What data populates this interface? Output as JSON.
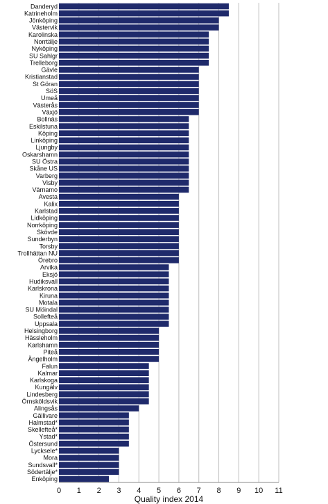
{
  "chart_data": {
    "type": "bar",
    "orientation": "horizontal",
    "xlabel": "Quality index 2014",
    "xlim": [
      0,
      11
    ],
    "xticks": [
      0,
      1,
      2,
      3,
      4,
      5,
      6,
      7,
      8,
      9,
      10,
      11
    ],
    "grid": true,
    "colors": {
      "bar": "#1f2a6b"
    },
    "categories": [
      "Danderyd",
      "Katrineholm",
      "Jönköping",
      "Västervik",
      "Karolinska",
      "Norrtälje",
      "Nyköping",
      "SU Sahlgr",
      "Trelleborg",
      "Gävle",
      "Kristianstad",
      "St Göran",
      "SöS",
      "Umeå",
      "Västerås",
      "Växjö",
      "Bollnäs",
      "Eskilstuna",
      "Köping",
      "Linköping",
      "Ljungby",
      "Oskarshamn",
      "SU Östra",
      "Skåne US",
      "Varberg",
      "Visby",
      "Värnamo",
      "Avesta",
      "Kalix",
      "Karlstad",
      "Lidköping",
      "Norrköping",
      "Skövde",
      "Sunderbyn",
      "Torsby",
      "Trollhättan NU",
      "Örebro",
      "Arvika",
      "Eksjö",
      "Hudiksvall",
      "Karlskrona",
      "Kiruna",
      "Motala",
      "SU Möindal",
      "Sollefteå",
      "Uppsala",
      "Helsingborg",
      "Hässleholm",
      "Karlshamn",
      "Piteå",
      "Ängelholm",
      "Falun",
      "Kalmar",
      "Karlskoga",
      "Kungälv",
      "Lindesberg",
      "Örnsköldsvik",
      "Alingsås",
      "Gällivare",
      "Halmstad*",
      "Skellefteå*",
      "Ystad*",
      "Östersund",
      "Lycksele*",
      "Mora",
      "Sundsvall*",
      "Södertälje*",
      "Enköping"
    ],
    "values": [
      8.5,
      8.5,
      8,
      8,
      7.5,
      7.5,
      7.5,
      7.5,
      7.5,
      7,
      7,
      7,
      7,
      7,
      7,
      7,
      6.5,
      6.5,
      6.5,
      6.5,
      6.5,
      6.5,
      6.5,
      6.5,
      6.5,
      6.5,
      6.5,
      6,
      6,
      6,
      6,
      6,
      6,
      6,
      6,
      6,
      6,
      5.5,
      5.5,
      5.5,
      5.5,
      5.5,
      5.5,
      5.5,
      5.5,
      5.5,
      5,
      5,
      5,
      5,
      5,
      4.5,
      4.5,
      4.5,
      4.5,
      4.5,
      4.5,
      4,
      3.5,
      3.5,
      3.5,
      3.5,
      3.5,
      3,
      3,
      3,
      3,
      2.5
    ]
  }
}
